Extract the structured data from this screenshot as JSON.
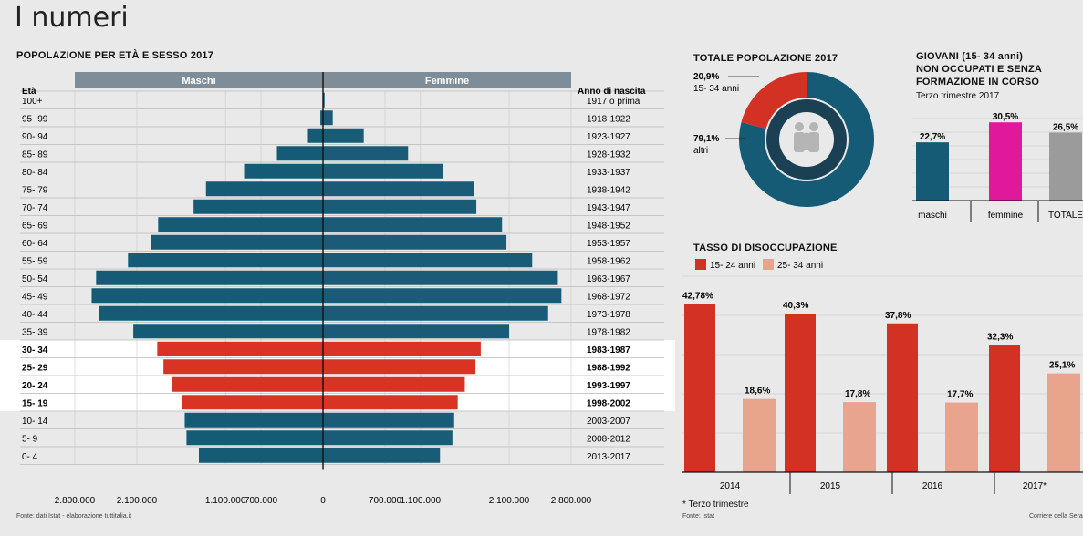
{
  "page": {
    "title": "I numeri",
    "pyramid_title": "POPOLAZIONE PER ETÀ E SESSO 2017",
    "pyramid_source": "Fonte: dati Istat - elaborazione tuttitalia.it",
    "total_title": "TOTALE POPOLAZIONE 2017",
    "youth_title_1": "GIOVANI (15- 34 anni)",
    "youth_title_2": "NON OCCUPATI E SENZA",
    "youth_title_3": "FORMAZIONE IN CORSO",
    "youth_subtitle": "Terzo trimestre 2017",
    "unemp_title": "TASSO DI DISOCCUPAZIONE",
    "unemp_footnote": "* Terzo trimestre",
    "unemp_source": "Fonte: Istat",
    "credit": "Corriere della Sera"
  },
  "colors": {
    "male": "#155b75",
    "female": "#1a5c78",
    "youth_band": "#d83324",
    "header": "#7f8d99",
    "pink": "#e0199c",
    "grey": "#9b9b9b",
    "salmon": "#e8a48d",
    "red": "#d33124",
    "donut_dark": "#a8261c"
  },
  "chart_data": [
    {
      "type": "bar",
      "title": "POPOLAZIONE PER ETÀ E SESSO 2017",
      "subtype": "population-pyramid",
      "xlabel_left": "Maschi",
      "xlabel_right": "Femmine",
      "ylabel": "Età",
      "ylabel_right": "Anno di nascita",
      "age_groups": [
        "100+",
        "95- 99",
        "90- 94",
        "85- 89",
        "80- 84",
        "75- 79",
        "70- 74",
        "65- 69",
        "60- 64",
        "55- 59",
        "50- 54",
        "45- 49",
        "40- 44",
        "35- 39",
        "30- 34",
        "25- 29",
        "20- 24",
        "15- 19",
        "10- 14",
        "5- 9",
        "0- 4"
      ],
      "birth_years": [
        "1917 o prima",
        "1918-1922",
        "1923-1927",
        "1928-1932",
        "1933-1937",
        "1938-1942",
        "1943-1947",
        "1948-1952",
        "1953-1957",
        "1958-1962",
        "1963-1967",
        "1968-1972",
        "1973-1978",
        "1978-1982",
        "1983-1987",
        "1988-1992",
        "1993-1997",
        "1998-2002",
        "2003-2007",
        "2008-2012",
        "2013-2017"
      ],
      "series": [
        {
          "name": "Maschi",
          "values": [
            4000,
            30000,
            170000,
            520000,
            890000,
            1320000,
            1460000,
            1860000,
            1940000,
            2200000,
            2560000,
            2610000,
            2530000,
            2140000,
            1870000,
            1800000,
            1700000,
            1590000,
            1560000,
            1540000,
            1400000
          ]
        },
        {
          "name": "Femmine",
          "values": [
            18000,
            110000,
            460000,
            960000,
            1350000,
            1700000,
            1730000,
            2020000,
            2070000,
            2360000,
            2650000,
            2690000,
            2540000,
            2100000,
            1780000,
            1720000,
            1600000,
            1520000,
            1480000,
            1460000,
            1320000
          ]
        }
      ],
      "highlight_groups": [
        "30- 34",
        "25- 29",
        "20- 24",
        "15- 19"
      ],
      "tick_labels_left": [
        "2.800.000",
        "2.100.000",
        "1.100.000",
        "700.000",
        "0"
      ],
      "tick_labels_right": [
        "700.000",
        "1.100.000",
        "2.100.000",
        "2.800.000"
      ],
      "xlim": [
        0,
        2800000
      ]
    },
    {
      "type": "pie",
      "title": "TOTALE POPOLAZIONE 2017",
      "slices": [
        {
          "label": "15- 34 anni",
          "value": 20.9,
          "value_label": "20,9%"
        },
        {
          "label": "altri",
          "value": 79.1,
          "value_label": "79,1%"
        }
      ]
    },
    {
      "type": "bar",
      "title": "GIOVANI (15- 34 anni) NON OCCUPATI E SENZA FORMAZIONE IN CORSO",
      "subtitle": "Terzo trimestre 2017",
      "categories": [
        "maschi",
        "femmine",
        "TOTALE"
      ],
      "values": [
        22.7,
        30.5,
        26.5
      ],
      "value_labels": [
        "22,7%",
        "30,5%",
        "26,5%"
      ],
      "ylim": [
        0,
        35
      ]
    },
    {
      "type": "bar",
      "title": "TASSO DI DISOCCUPAZIONE",
      "categories": [
        "2014",
        "2015",
        "2016",
        "2017*"
      ],
      "series": [
        {
          "name": "15- 24 anni",
          "values": [
            42.78,
            40.3,
            37.8,
            32.3
          ],
          "labels": [
            "42,78%",
            "40,3%",
            "37,8%",
            "32,3%"
          ]
        },
        {
          "name": "25- 34 anni",
          "values": [
            18.6,
            17.8,
            17.7,
            25.1
          ],
          "labels": [
            "18,6%",
            "17,8%",
            "17,7%",
            "25,1%"
          ]
        }
      ],
      "ylim": [
        0,
        50
      ],
      "legend": "top-left"
    }
  ]
}
